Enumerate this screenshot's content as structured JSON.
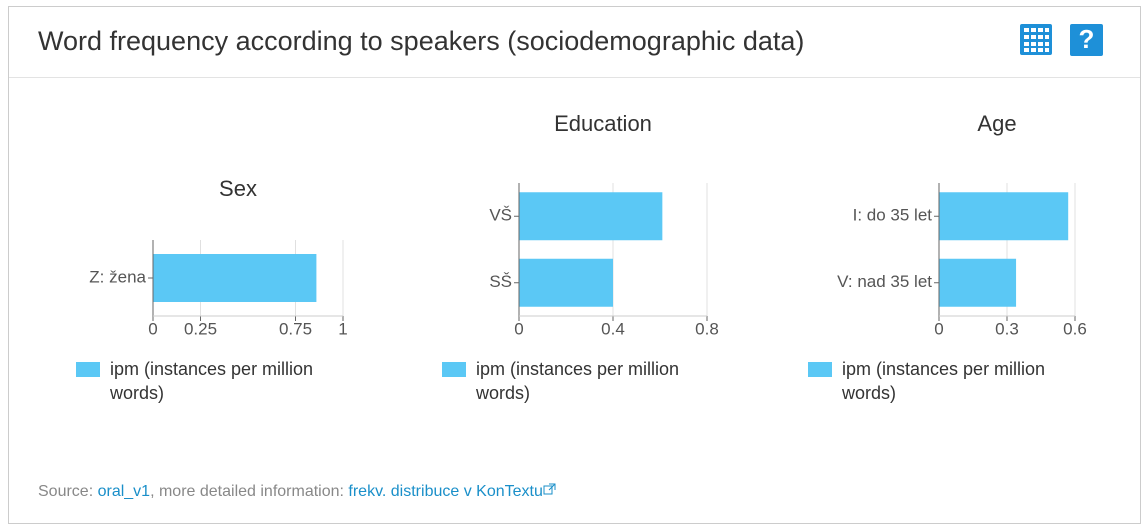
{
  "header": {
    "title": "Word frequency according to speakers (sociodemographic data)"
  },
  "chart_data": [
    {
      "type": "bar",
      "title": "Sex",
      "categories": [
        "Z: žena"
      ],
      "series": [
        {
          "name": "ipm (instances per million words)",
          "color": "#5bc8f5",
          "values": [
            0.86
          ]
        }
      ],
      "xlim": [
        0,
        1
      ],
      "xticks": [
        0,
        0.25,
        0.75,
        1
      ],
      "grid": true
    },
    {
      "type": "bar",
      "title": "Education",
      "categories": [
        "VŠ",
        "SŠ"
      ],
      "series": [
        {
          "name": "ipm (instances per million words)",
          "color": "#5bc8f5",
          "values": [
            0.61,
            0.4
          ]
        }
      ],
      "xlim": [
        0,
        0.8
      ],
      "xticks": [
        0,
        0.4,
        0.8
      ],
      "grid": true
    },
    {
      "type": "bar",
      "title": "Age",
      "categories": [
        "I: do 35 let",
        "V: nad 35 let"
      ],
      "series": [
        {
          "name": "ipm (instances per million words)",
          "color": "#5bc8f5",
          "values": [
            0.57,
            0.34
          ]
        }
      ],
      "xlim": [
        0,
        0.6
      ],
      "xticks": [
        0,
        0.3,
        0.6
      ],
      "grid": true
    }
  ],
  "footer": {
    "source_label": "Source: ",
    "source_link": "oral_v1",
    "middle": ", more detailed information: ",
    "detail_link": "frekv. distribuce v KonTextu"
  }
}
